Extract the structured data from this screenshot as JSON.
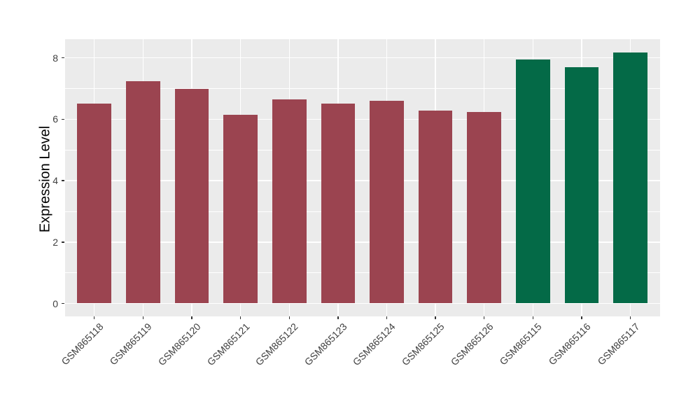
{
  "chart_data": {
    "type": "bar",
    "title": "",
    "xlabel": "",
    "ylabel": "Expression Level",
    "categories": [
      "GSM865118",
      "GSM865119",
      "GSM865120",
      "GSM865121",
      "GSM865122",
      "GSM865123",
      "GSM865124",
      "GSM865125",
      "GSM865126",
      "GSM865115",
      "GSM865116",
      "GSM865117"
    ],
    "values": [
      6.51,
      7.24,
      7.0,
      6.14,
      6.65,
      6.52,
      6.6,
      6.28,
      6.23,
      7.95,
      7.7,
      8.17
    ],
    "bar_colors": [
      "#9B4450",
      "#9B4450",
      "#9B4450",
      "#9B4450",
      "#9B4450",
      "#9B4450",
      "#9B4450",
      "#9B4450",
      "#9B4450",
      "#046A47",
      "#046A47",
      "#046A47"
    ],
    "y_ticks": [
      0,
      2,
      4,
      6,
      8
    ],
    "y_minor_ticks": [
      1,
      3,
      5,
      7
    ],
    "ylim": [
      -0.41,
      8.59
    ],
    "grid": true,
    "legend": "none",
    "colors": {
      "panel_background": "#EBEBEB",
      "gridline": "#FFFFFF",
      "maroon_group": "#9B4450",
      "green_group": "#046A47",
      "tick_mark": "#333333",
      "axis_text": "#404040",
      "axis_title": "#000000",
      "figure_background": "#FFFFFF"
    }
  }
}
